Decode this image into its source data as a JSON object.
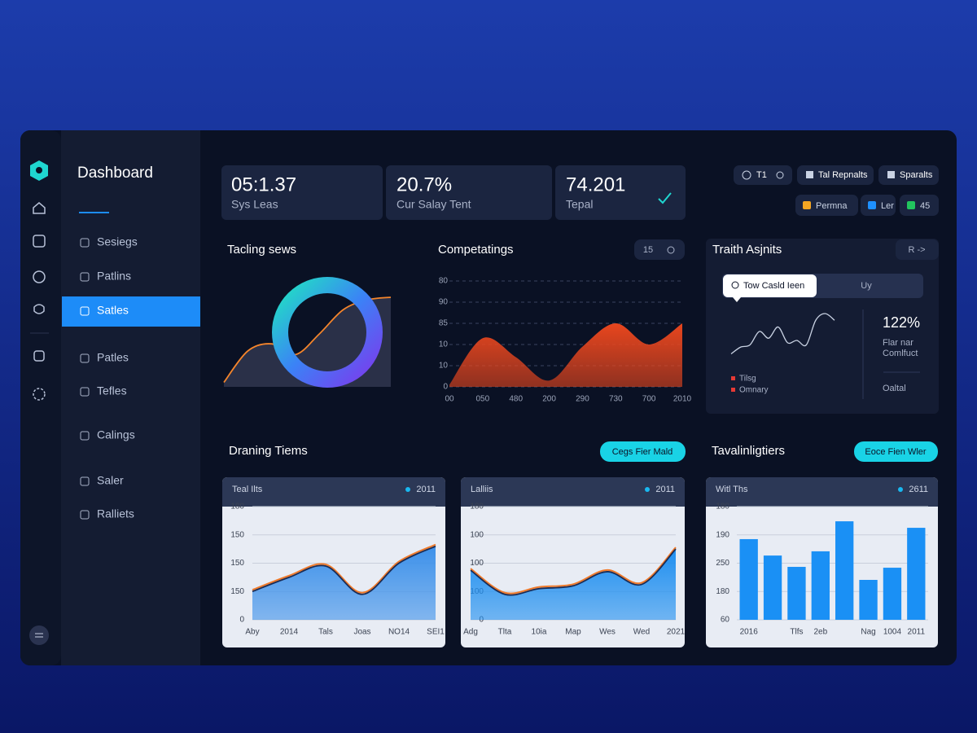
{
  "sidebar": {
    "title": "Dashboard",
    "items": [
      "Sesiegs",
      "Patlins",
      "Satles",
      "Patles",
      "Tefles",
      "Calings",
      "Saler",
      "Ralliets"
    ],
    "active": 2
  },
  "stats": [
    {
      "value": "05:1.37",
      "label": "Sys Leas"
    },
    {
      "value": "20.7%",
      "label": "Cur Salay Tent"
    },
    {
      "value": "74.201",
      "label": "Tepal"
    }
  ],
  "toolbar": {
    "buttons": [
      "T1",
      "Tal Repnalts",
      "Sparalts"
    ],
    "legend": [
      {
        "name": "Permna",
        "color": "#f5a623"
      },
      {
        "name": "Ler",
        "color": "#1e90ff"
      },
      {
        "name": "45",
        "color": "#22c55e"
      }
    ]
  },
  "traith": {
    "button": "R ->",
    "tabs": [
      "Tow Casld Ieen",
      "Uy"
    ],
    "metric": "122%",
    "metric_label": [
      "Flar nar",
      "Comlfuct"
    ],
    "footer": "Oaltal",
    "legend": [
      {
        "name": "Tilsg",
        "color": "#e53935"
      },
      {
        "name": "Omnary",
        "color": "#e53935"
      }
    ]
  },
  "sections": [
    {
      "title": "Draning Tiems",
      "button": "Cegs Fier Mald"
    },
    {
      "title": "Tavalinligtiers",
      "button": "Eoce Fien Wler"
    }
  ],
  "chart_data": [
    {
      "type": "area",
      "title": "Tacling sews",
      "values": [
        0.05,
        0.4,
        0.48,
        0.36,
        0.59,
        0.86,
        0.97,
        1.0
      ],
      "ylim": [
        0,
        1
      ],
      "color": "#f5852b"
    },
    {
      "type": "area",
      "title": "Competatings",
      "control": "15",
      "categories": [
        "00",
        "050",
        "480",
        "200",
        "290",
        "730",
        "700",
        "2010"
      ],
      "values": [
        0.1,
        2.3,
        1.4,
        0.3,
        1.9,
        3.0,
        2.0,
        3.0
      ],
      "ylim": [
        0,
        5
      ],
      "yticks": [
        {
          "value": 0,
          "label": "0"
        },
        {
          "value": 1,
          "label": "10"
        },
        {
          "value": 2,
          "label": "10"
        },
        {
          "value": 3,
          "label": "85"
        },
        {
          "value": 4,
          "label": "90"
        },
        {
          "value": 5,
          "label": "80"
        }
      ],
      "color": "#e8461e",
      "grid": true
    },
    {
      "type": "line",
      "title": "Traith Asjnits",
      "values": [
        0.1,
        0.25,
        0.3,
        0.6,
        0.45,
        0.7,
        0.35,
        0.4,
        0.3,
        0.85,
        1.0,
        0.85
      ],
      "ylim": [
        0,
        1
      ],
      "color": "#c9d2e3"
    },
    {
      "type": "area",
      "title": "Teal Ilts",
      "year": "2011",
      "categories": [
        "Aby",
        "2014",
        "Tals",
        "Joas",
        "NO14",
        "SEI1"
      ],
      "values": [
        1.0,
        1.5,
        1.9,
        0.9,
        2.0,
        2.6
      ],
      "ylim": [
        0,
        4
      ],
      "yticks": [
        {
          "value": 0,
          "label": "0"
        },
        {
          "value": 1,
          "label": "150"
        },
        {
          "value": 2,
          "label": "150"
        },
        {
          "value": 3,
          "label": "150"
        },
        {
          "value": 4,
          "label": "180"
        }
      ],
      "color": "#3d91ea",
      "grid": true
    },
    {
      "type": "area",
      "title": "Lalliis",
      "year": "2011",
      "categories": [
        "Adg",
        "Tlta",
        "10ia",
        "Map",
        "Wes",
        "Wed",
        "2021"
      ],
      "values": [
        1.75,
        0.9,
        1.1,
        1.2,
        1.7,
        1.25,
        2.5
      ],
      "ylim": [
        0,
        4
      ],
      "yticks": [
        {
          "value": 0,
          "label": "0"
        },
        {
          "value": 1,
          "label": "100"
        },
        {
          "value": 2,
          "label": "100"
        },
        {
          "value": 3,
          "label": "100"
        },
        {
          "value": 4,
          "label": "180"
        }
      ],
      "color": "#1f8ff0",
      "grid": true
    },
    {
      "type": "bar",
      "title": "Witl Ths",
      "year": "2611",
      "categories": [
        "2016",
        null,
        "Tlfs",
        "2eb",
        null,
        "Nag",
        "1004",
        "2011"
      ],
      "values": [
        2.85,
        2.27,
        1.87,
        2.42,
        3.48,
        1.41,
        1.84,
        3.25
      ],
      "ylim": [
        0,
        4
      ],
      "yticks": [
        {
          "value": 0,
          "label": "60"
        },
        {
          "value": 1,
          "label": "180"
        },
        {
          "value": 2,
          "label": "250"
        },
        {
          "value": 3,
          "label": "190"
        },
        {
          "value": 4,
          "label": "180"
        }
      ],
      "color": "#1a90f5",
      "grid": true
    }
  ]
}
